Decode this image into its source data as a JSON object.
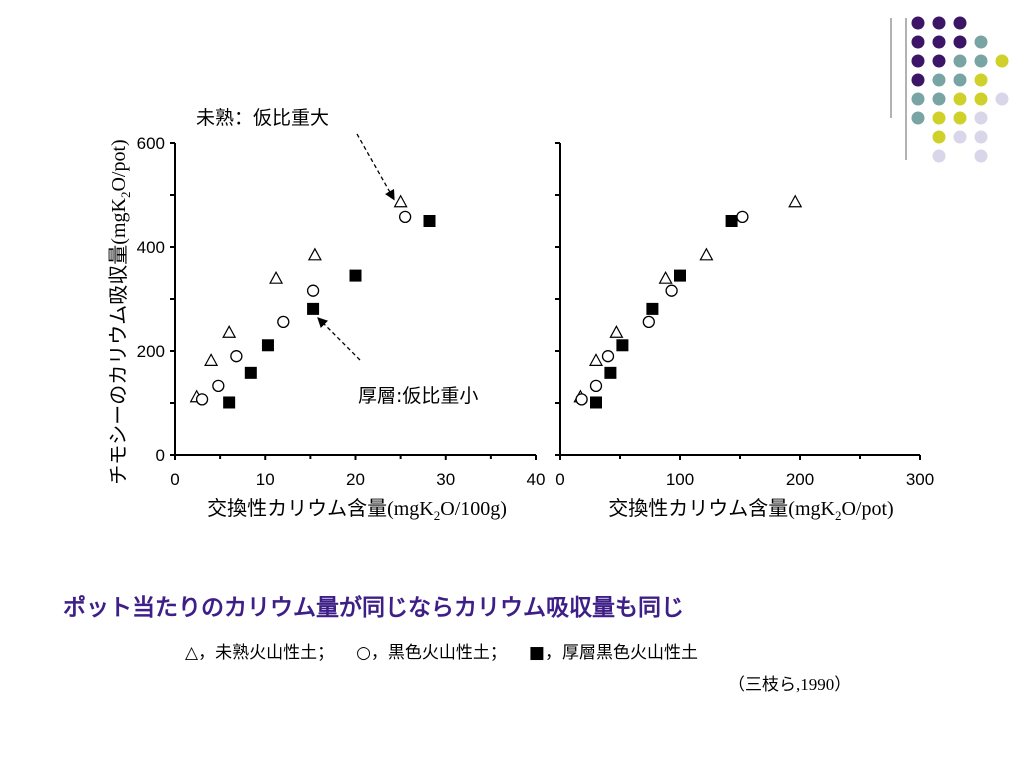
{
  "chart_data": [
    {
      "type": "scatter",
      "ylabel": "チモシーのカリウム吸収量(mgK2O/pot)",
      "xlabel": "交換性カリウム含量(mgK2O/100g)",
      "xlim": [
        0,
        40
      ],
      "ylim": [
        0,
        600
      ],
      "x_ticks": [
        "0",
        "10",
        "20",
        "30",
        "40"
      ],
      "y_ticks": [
        "0",
        "200",
        "400",
        "600"
      ],
      "series": [
        {
          "marker": "triangle",
          "points": [
            [
              2.4,
              112
            ],
            [
              4,
              182
            ],
            [
              6,
              236
            ],
            [
              11.2,
              340
            ],
            [
              15.5,
              385
            ],
            [
              25,
              487
            ]
          ]
        },
        {
          "marker": "circle",
          "points": [
            [
              3,
              107
            ],
            [
              4.8,
              133
            ],
            [
              6.8,
              190
            ],
            [
              12,
              256
            ],
            [
              15.3,
              316
            ],
            [
              25.5,
              458
            ]
          ]
        },
        {
          "marker": "square",
          "points": [
            [
              6,
              101
            ],
            [
              8.4,
              158
            ],
            [
              10.3,
              211
            ],
            [
              15.3,
              281
            ],
            [
              20,
              345
            ],
            [
              28.2,
              450
            ]
          ]
        }
      ],
      "annotations": [
        {
          "text": "未熟：仮比重大",
          "target": [
            24.5,
            495
          ]
        },
        {
          "text": "厚層:仮比重小",
          "target": [
            15.5,
            260
          ]
        }
      ]
    },
    {
      "type": "scatter",
      "xlabel": "交換性カリウム含量(mgK2O/pot)",
      "xlim": [
        0,
        300
      ],
      "ylim": [
        0,
        600
      ],
      "x_ticks": [
        "0",
        "100",
        "200",
        "300"
      ],
      "series": [
        {
          "marker": "triangle",
          "points": [
            [
              17,
              112
            ],
            [
              30,
              182
            ],
            [
              47,
              236
            ],
            [
              88,
              340
            ],
            [
              122,
              385
            ],
            [
              196,
              487
            ]
          ]
        },
        {
          "marker": "circle",
          "points": [
            [
              18,
              107
            ],
            [
              30,
              133
            ],
            [
              40,
              190
            ],
            [
              74,
              256
            ],
            [
              93,
              316
            ],
            [
              152,
              458
            ]
          ]
        },
        {
          "marker": "square",
          "points": [
            [
              30,
              101
            ],
            [
              42,
              158
            ],
            [
              52,
              211
            ],
            [
              77,
              281
            ],
            [
              100,
              345
            ],
            [
              143,
              450
            ]
          ]
        }
      ]
    }
  ],
  "conclusion": "ポット当たりのカリウム量が同じならカリウム吸収量も同じ",
  "legend": {
    "triangle": "△，未熟火山性土；",
    "circle": "○，黒色火山性土；",
    "square": "■，厚層黒色火山性土"
  },
  "citation": "（三枝ら,1990）",
  "colors": {
    "accent_text": "#3d1f87",
    "dot_purple": "#3d1566",
    "dot_teal": "#78a5a3",
    "dot_yellow": "#cfd12a",
    "dot_lavender": "#d8d6e8"
  }
}
